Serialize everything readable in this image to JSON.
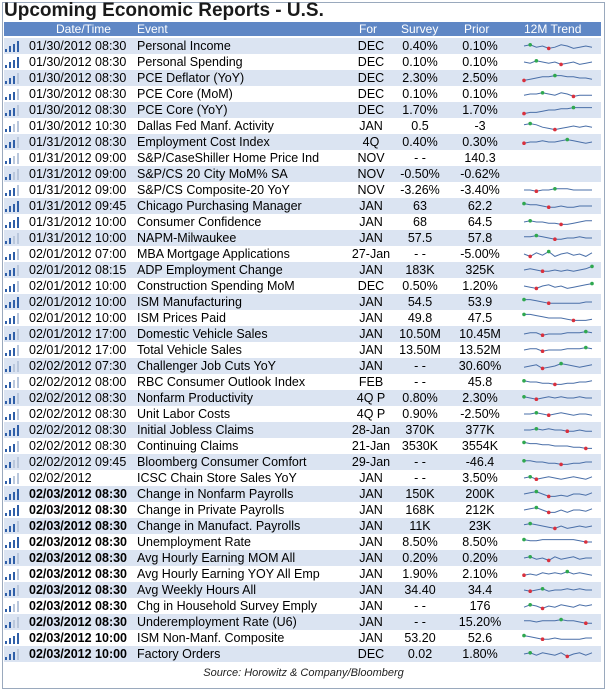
{
  "title": "Upcoming Economic Reports - U.S.",
  "columns": {
    "datetime": "Date/Time",
    "event": "Event",
    "for": "For",
    "survey": "Survey",
    "prior": "Prior",
    "trend": "12M Trend"
  },
  "source": "Source: Horowitz & Company/Bloomberg",
  "colors": {
    "header": "#5f87c5",
    "band": "#dbe4f2",
    "line": "#4a6fa8",
    "up": "#2fa84f",
    "down": "#d9303d"
  },
  "rows": [
    {
      "dt": "01/30/2012 08:30",
      "ev": "Personal Income",
      "for": "DEC",
      "sv": "0.40%",
      "pr": "0.10%",
      "sig": 4,
      "trend": [
        0.5,
        0.6,
        0.4,
        0.5,
        0.3,
        0.4,
        0.6,
        0.5,
        0.3,
        0.4,
        0.5,
        0.4
      ]
    },
    {
      "dt": "01/30/2012 08:30",
      "ev": "Personal Spending",
      "for": "DEC",
      "sv": "0.10%",
      "pr": "0.10%",
      "sig": 4,
      "trend": [
        0.5,
        0.4,
        0.6,
        0.5,
        0.4,
        0.5,
        0.3,
        0.4,
        0.5,
        0.3,
        0.4,
        0.5
      ]
    },
    {
      "dt": "01/30/2012 08:30",
      "ev": "PCE Deflator (YoY)",
      "for": "DEC",
      "sv": "2.30%",
      "pr": "2.50%",
      "sig": 3,
      "trend": [
        0.3,
        0.4,
        0.5,
        0.6,
        0.6,
        0.7,
        0.7,
        0.6,
        0.6,
        0.5,
        0.5,
        0.4
      ]
    },
    {
      "dt": "01/30/2012 08:30",
      "ev": "PCE Core (MoM)",
      "for": "DEC",
      "sv": "0.10%",
      "pr": "0.10%",
      "sig": 3,
      "trend": [
        0.4,
        0.5,
        0.5,
        0.6,
        0.5,
        0.4,
        0.6,
        0.5,
        0.3,
        0.4,
        0.4,
        0.4
      ]
    },
    {
      "dt": "01/30/2012 08:30",
      "ev": "PCE Core (YoY)",
      "for": "DEC",
      "sv": "1.70%",
      "pr": "1.70%",
      "sig": 3,
      "trend": [
        0.2,
        0.3,
        0.3,
        0.4,
        0.5,
        0.5,
        0.6,
        0.6,
        0.7,
        0.7,
        0.7,
        0.7
      ]
    },
    {
      "dt": "01/30/2012 10:30",
      "ev": "Dallas Fed Manf. Activity",
      "for": "JAN",
      "sv": "0.5",
      "pr": "-3",
      "sig": 2,
      "trend": [
        0.6,
        0.7,
        0.6,
        0.4,
        0.3,
        0.2,
        0.3,
        0.4,
        0.5,
        0.4,
        0.5,
        0.4
      ]
    },
    {
      "dt": "01/31/2012 08:30",
      "ev": "Employment Cost Index",
      "for": "4Q",
      "sv": "0.40%",
      "pr": "0.30%",
      "sig": 3,
      "trend": [
        0.4,
        0.5,
        0.5,
        0.6,
        0.5,
        0.5,
        0.6,
        0.7,
        0.6,
        0.5,
        0.4,
        0.5
      ]
    },
    {
      "dt": "01/31/2012 09:00",
      "ev": "S&P/CaseShiller Home Price Ind",
      "for": "NOV",
      "sv": "- -",
      "pr": "140.3",
      "sig": 2,
      "trend": []
    },
    {
      "dt": "01/31/2012 09:00",
      "ev": "S&P/CS 20 City MoM% SA",
      "for": "NOV",
      "sv": "-0.50%",
      "pr": "-0.62%",
      "sig": 2,
      "trend": []
    },
    {
      "dt": "01/31/2012 09:00",
      "ev": "S&P/CS Composite-20 YoY",
      "for": "NOV",
      "sv": "-3.26%",
      "pr": "-3.40%",
      "sig": 3,
      "trend": [
        0.5,
        0.5,
        0.4,
        0.5,
        0.5,
        0.6,
        0.6,
        0.6,
        0.5,
        0.5,
        0.5,
        0.5
      ]
    },
    {
      "dt": "01/31/2012 09:45",
      "ev": "Chicago Purchasing Manager",
      "for": "JAN",
      "sv": "63",
      "pr": "62.2",
      "sig": 4,
      "trend": [
        0.7,
        0.6,
        0.6,
        0.5,
        0.4,
        0.4,
        0.5,
        0.4,
        0.4,
        0.5,
        0.5,
        0.5
      ]
    },
    {
      "dt": "01/31/2012 10:00",
      "ev": "Consumer Confidence",
      "for": "JAN",
      "sv": "68",
      "pr": "64.5",
      "sig": 4,
      "trend": [
        0.5,
        0.6,
        0.5,
        0.5,
        0.4,
        0.4,
        0.3,
        0.3,
        0.4,
        0.5,
        0.6,
        0.6
      ]
    },
    {
      "dt": "01/31/2012 10:00",
      "ev": "NAPM-Milwaukee",
      "for": "JAN",
      "sv": "57.5",
      "pr": "57.8",
      "sig": 2,
      "trend": [
        0.6,
        0.6,
        0.7,
        0.6,
        0.5,
        0.4,
        0.4,
        0.5,
        0.5,
        0.6,
        0.5,
        0.5
      ]
    },
    {
      "dt": "02/01/2012 07:00",
      "ev": "MBA Mortgage Applications",
      "for": "27-Jan",
      "sv": "- -",
      "pr": "-5.00%",
      "sig": 3,
      "trend": [
        0.5,
        0.3,
        0.6,
        0.4,
        0.7,
        0.3,
        0.5,
        0.6,
        0.4,
        0.5,
        0.3,
        0.6
      ]
    },
    {
      "dt": "02/01/2012 08:15",
      "ev": "ADP Employment Change",
      "for": "JAN",
      "sv": "183K",
      "pr": "325K",
      "sig": 3,
      "trend": [
        0.5,
        0.6,
        0.5,
        0.4,
        0.4,
        0.5,
        0.4,
        0.5,
        0.4,
        0.5,
        0.6,
        0.8
      ]
    },
    {
      "dt": "02/01/2012 10:00",
      "ev": "Construction Spending MoM",
      "for": "DEC",
      "sv": "0.50%",
      "pr": "1.20%",
      "sig": 3,
      "trend": [
        0.5,
        0.4,
        0.3,
        0.5,
        0.6,
        0.4,
        0.5,
        0.3,
        0.4,
        0.5,
        0.6,
        0.7
      ]
    },
    {
      "dt": "02/01/2012 10:00",
      "ev": "ISM Manufacturing",
      "for": "JAN",
      "sv": "54.5",
      "pr": "53.9",
      "sig": 4,
      "trend": [
        0.7,
        0.7,
        0.6,
        0.5,
        0.4,
        0.4,
        0.4,
        0.4,
        0.4,
        0.4,
        0.5,
        0.5
      ]
    },
    {
      "dt": "02/01/2012 10:00",
      "ev": "ISM Prices Paid",
      "for": "JAN",
      "sv": "49.8",
      "pr": "47.5",
      "sig": 3,
      "trend": [
        0.8,
        0.8,
        0.7,
        0.6,
        0.5,
        0.5,
        0.5,
        0.4,
        0.3,
        0.3,
        0.3,
        0.4
      ]
    },
    {
      "dt": "02/01/2012 17:00",
      "ev": "Domestic Vehicle Sales",
      "for": "JAN",
      "sv": "10.50M",
      "pr": "10.45M",
      "sig": 3,
      "trend": [
        0.5,
        0.6,
        0.6,
        0.4,
        0.5,
        0.5,
        0.5,
        0.6,
        0.6,
        0.6,
        0.7,
        0.6
      ]
    },
    {
      "dt": "02/01/2012 17:00",
      "ev": "Total Vehicle Sales",
      "for": "JAN",
      "sv": "13.50M",
      "pr": "13.52M",
      "sig": 3,
      "trend": [
        0.5,
        0.6,
        0.6,
        0.4,
        0.5,
        0.5,
        0.5,
        0.6,
        0.6,
        0.6,
        0.7,
        0.6
      ]
    },
    {
      "dt": "02/02/2012 07:30",
      "ev": "Challenger Job Cuts YoY",
      "for": "JAN",
      "sv": "- -",
      "pr": "30.60%",
      "sig": 2,
      "trend": [
        0.4,
        0.5,
        0.6,
        0.3,
        0.4,
        0.5,
        0.7,
        0.6,
        0.5,
        0.4,
        0.5,
        0.6
      ]
    },
    {
      "dt": "02/02/2012 08:00",
      "ev": "RBC Consumer Outlook Index",
      "for": "FEB",
      "sv": "- -",
      "pr": "45.8",
      "sig": 2,
      "trend": [
        0.6,
        0.5,
        0.5,
        0.4,
        0.4,
        0.3,
        0.3,
        0.4,
        0.4,
        0.5,
        0.5,
        0.6
      ]
    },
    {
      "dt": "02/02/2012 08:30",
      "ev": "Nonfarm Productivity",
      "for": "4Q P",
      "sv": "0.80%",
      "pr": "2.30%",
      "sig": 3,
      "trend": [
        0.6,
        0.5,
        0.4,
        0.5,
        0.6,
        0.5,
        0.6,
        0.5,
        0.5,
        0.6,
        0.5,
        0.5
      ]
    },
    {
      "dt": "02/02/2012 08:30",
      "ev": "Unit Labor Costs",
      "for": "4Q P",
      "sv": "0.90%",
      "pr": "-2.50%",
      "sig": 3,
      "trend": [
        0.5,
        0.5,
        0.6,
        0.5,
        0.4,
        0.5,
        0.6,
        0.5,
        0.4,
        0.5,
        0.5,
        0.4
      ]
    },
    {
      "dt": "02/02/2012 08:30",
      "ev": "Initial Jobless Claims",
      "for": "28-Jan",
      "sv": "370K",
      "pr": "377K",
      "sig": 4,
      "trend": [
        0.5,
        0.5,
        0.6,
        0.5,
        0.6,
        0.5,
        0.5,
        0.4,
        0.4,
        0.5,
        0.4,
        0.4
      ]
    },
    {
      "dt": "02/02/2012 08:30",
      "ev": "Continuing Claims",
      "for": "21-Jan",
      "sv": "3530K",
      "pr": "3554K",
      "sig": 3,
      "trend": [
        0.8,
        0.7,
        0.7,
        0.6,
        0.6,
        0.5,
        0.5,
        0.5,
        0.4,
        0.4,
        0.3,
        0.3
      ]
    },
    {
      "dt": "02/02/2012 09:45",
      "ev": "Bloomberg Consumer Comfort",
      "for": "29-Jan",
      "sv": "- -",
      "pr": "-46.4",
      "sig": 2,
      "trend": [
        0.6,
        0.6,
        0.5,
        0.5,
        0.4,
        0.4,
        0.3,
        0.3,
        0.4,
        0.4,
        0.5,
        0.5
      ]
    },
    {
      "dt": "02/02/2012",
      "ev": "ICSC Chain Store Sales YoY",
      "for": "JAN",
      "sv": "- -",
      "pr": "3.50%",
      "sig": 2,
      "trend": [
        0.5,
        0.6,
        0.4,
        0.5,
        0.6,
        0.5,
        0.4,
        0.5,
        0.6,
        0.5,
        0.4,
        0.6
      ]
    },
    {
      "dt": "02/03/2012 08:30",
      "ev": "Change in Nonfarm Payrolls",
      "for": "JAN",
      "sv": "150K",
      "pr": "200K",
      "sig": 4,
      "bold": true,
      "trend": [
        0.5,
        0.6,
        0.7,
        0.5,
        0.3,
        0.3,
        0.4,
        0.3,
        0.5,
        0.5,
        0.4,
        0.6
      ]
    },
    {
      "dt": "02/03/2012 08:30",
      "ev": "Change in Private Payrolls",
      "for": "JAN",
      "sv": "168K",
      "pr": "212K",
      "sig": 4,
      "bold": true,
      "trend": [
        0.5,
        0.6,
        0.7,
        0.5,
        0.3,
        0.3,
        0.5,
        0.3,
        0.5,
        0.5,
        0.4,
        0.6
      ]
    },
    {
      "dt": "02/03/2012 08:30",
      "ev": "Change in Manufact. Payrolls",
      "for": "JAN",
      "sv": "11K",
      "pr": "23K",
      "sig": 3,
      "bold": true,
      "trend": [
        0.6,
        0.7,
        0.6,
        0.5,
        0.4,
        0.3,
        0.5,
        0.3,
        0.4,
        0.5,
        0.4,
        0.5
      ]
    },
    {
      "dt": "02/03/2012 08:30",
      "ev": "Unemployment Rate",
      "for": "JAN",
      "sv": "8.50%",
      "pr": "8.50%",
      "sig": 4,
      "bold": true,
      "trend": [
        0.7,
        0.6,
        0.6,
        0.7,
        0.7,
        0.7,
        0.7,
        0.7,
        0.7,
        0.6,
        0.5,
        0.5
      ]
    },
    {
      "dt": "02/03/2012 08:30",
      "ev": "Avg Hourly Earning MOM All",
      "for": "JAN",
      "sv": "0.20%",
      "pr": "0.20%",
      "sig": 3,
      "bold": true,
      "trend": [
        0.5,
        0.6,
        0.4,
        0.5,
        0.3,
        0.6,
        0.4,
        0.5,
        0.6,
        0.4,
        0.5,
        0.5
      ]
    },
    {
      "dt": "02/03/2012 08:30",
      "ev": "Avg Hourly Earning YOY All Emp",
      "for": "JAN",
      "sv": "1.90%",
      "pr": "2.10%",
      "sig": 3,
      "bold": true,
      "trend": [
        0.4,
        0.5,
        0.4,
        0.6,
        0.5,
        0.6,
        0.5,
        0.7,
        0.5,
        0.6,
        0.5,
        0.4
      ]
    },
    {
      "dt": "02/03/2012 08:30",
      "ev": "Avg Weekly Hours All",
      "for": "JAN",
      "sv": "34.40",
      "pr": "34.4",
      "sig": 3,
      "bold": true,
      "trend": [
        0.5,
        0.4,
        0.5,
        0.6,
        0.4,
        0.5,
        0.5,
        0.6,
        0.5,
        0.6,
        0.5,
        0.5
      ]
    },
    {
      "dt": "02/03/2012 08:30",
      "ev": "Chg in Household Survey Emply",
      "for": "JAN",
      "sv": "- -",
      "pr": "176",
      "sig": 2,
      "bold": true,
      "trend": [
        0.4,
        0.6,
        0.5,
        0.3,
        0.5,
        0.4,
        0.6,
        0.5,
        0.4,
        0.6,
        0.5,
        0.6
      ]
    },
    {
      "dt": "02/03/2012 08:30",
      "ev": "Underemployment Rate (U6)",
      "for": "JAN",
      "sv": "- -",
      "pr": "15.20%",
      "sig": 2,
      "bold": true,
      "trend": [
        0.6,
        0.6,
        0.5,
        0.6,
        0.6,
        0.6,
        0.7,
        0.6,
        0.6,
        0.5,
        0.4,
        0.4
      ]
    },
    {
      "dt": "02/03/2012 10:00",
      "ev": "ISM Non-Manf. Composite",
      "for": "JAN",
      "sv": "53.20",
      "pr": "52.6",
      "sig": 4,
      "bold": true,
      "trend": [
        0.7,
        0.6,
        0.5,
        0.4,
        0.4,
        0.5,
        0.4,
        0.4,
        0.4,
        0.4,
        0.5,
        0.5
      ]
    },
    {
      "dt": "02/03/2012 10:00",
      "ev": "Factory Orders",
      "for": "DEC",
      "sv": "0.02",
      "pr": "1.80%",
      "sig": 3,
      "bold": true,
      "trend": [
        0.5,
        0.6,
        0.4,
        0.6,
        0.5,
        0.4,
        0.6,
        0.3,
        0.5,
        0.6,
        0.4,
        0.6
      ]
    }
  ]
}
